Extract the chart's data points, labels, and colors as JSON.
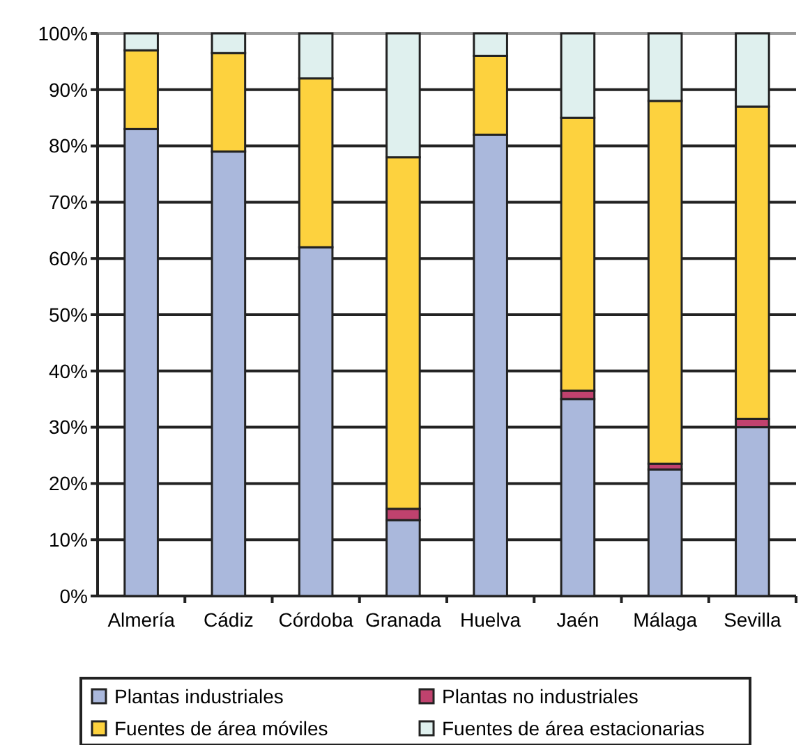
{
  "chart_data": {
    "type": "bar",
    "stacked": true,
    "categories": [
      "Almería",
      "Cádiz",
      "Córdoba",
      "Granada",
      "Huelva",
      "Jaén",
      "Málaga",
      "Sevilla"
    ],
    "series": [
      {
        "name": "Plantas industriales",
        "color": "#aab8dc",
        "values": [
          83,
          79,
          62,
          13.5,
          82,
          35,
          22.5,
          30
        ]
      },
      {
        "name": "Plantas no industriales",
        "color": "#c0426e",
        "values": [
          0,
          0,
          0,
          2,
          0,
          1.5,
          1,
          1.5
        ]
      },
      {
        "name": "Fuentes de área móviles",
        "color": "#fdd23e",
        "values": [
          14,
          17.5,
          30,
          62.5,
          14,
          48.5,
          64.5,
          55.5
        ]
      },
      {
        "name": "Fuentes de área estacionarias",
        "color": "#dff0ee",
        "values": [
          3,
          3.5,
          8,
          22,
          4,
          15,
          12,
          13
        ]
      }
    ],
    "ylim": [
      0,
      100
    ],
    "yticks": [
      {
        "value": 0,
        "label": "0%"
      },
      {
        "value": 10,
        "label": "10%"
      },
      {
        "value": 20,
        "label": "20%"
      },
      {
        "value": 30,
        "label": "30%"
      },
      {
        "value": 40,
        "label": "40%"
      },
      {
        "value": 50,
        "label": "50%"
      },
      {
        "value": 60,
        "label": "60%"
      },
      {
        "value": 70,
        "label": "70%"
      },
      {
        "value": 80,
        "label": "80%"
      },
      {
        "value": 90,
        "label": "90%"
      },
      {
        "value": 100,
        "label": "100%"
      }
    ],
    "grid": "y",
    "legend": "bottom"
  }
}
